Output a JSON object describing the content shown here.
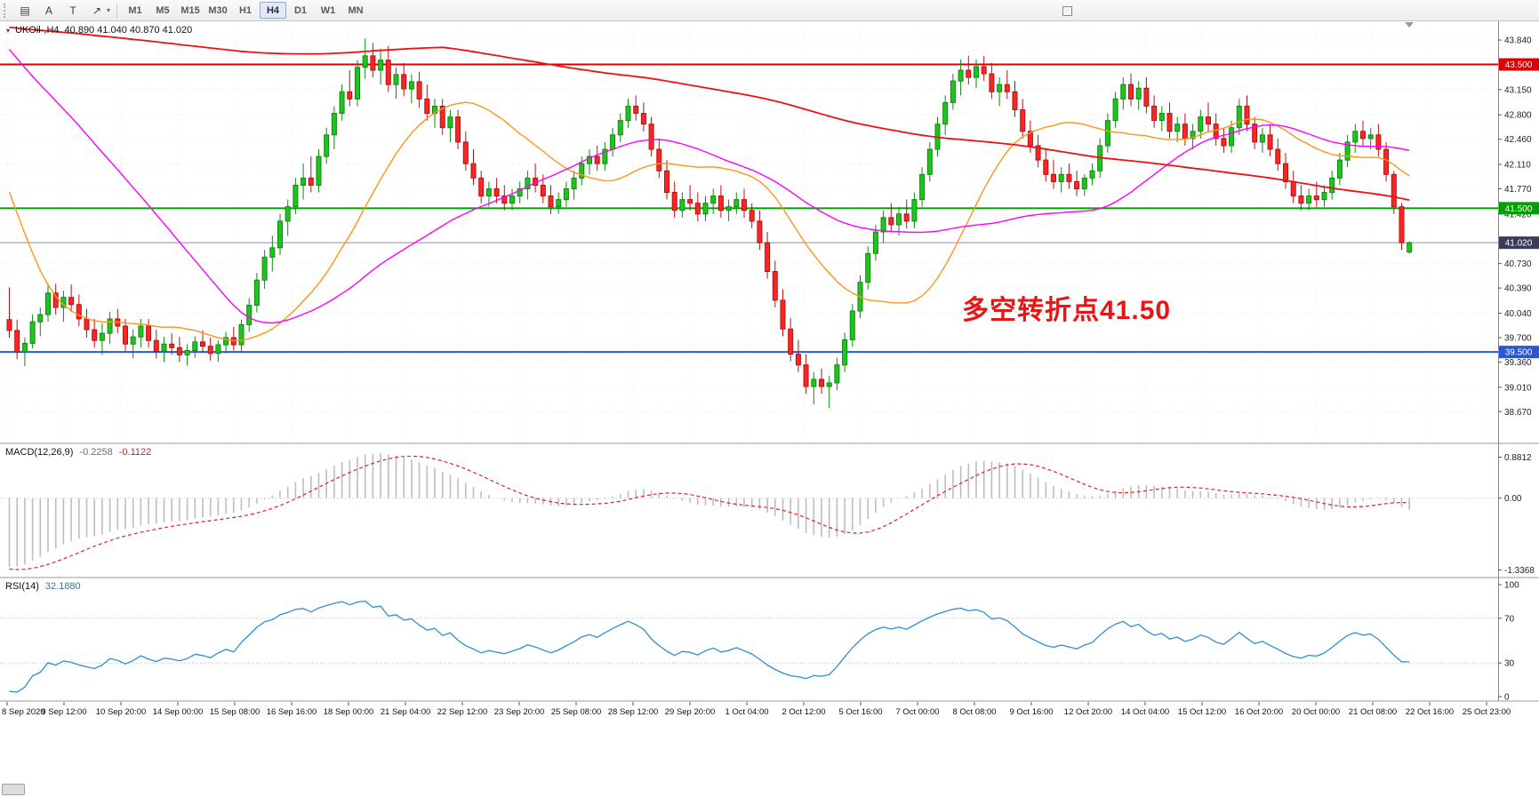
{
  "toolbar": {
    "tools": [
      {
        "name": "chart-window",
        "glyph": "▤"
      },
      {
        "name": "cursor-tool",
        "glyph": "A"
      },
      {
        "name": "text-tool",
        "glyph": "T"
      },
      {
        "name": "draw-tool",
        "glyph": "↗"
      }
    ],
    "dropdown_caret": "▾",
    "timeframes": [
      "M1",
      "M5",
      "M15",
      "M30",
      "H1",
      "H4",
      "D1",
      "W1",
      "MN"
    ],
    "active_timeframe": "H4"
  },
  "chart": {
    "title_caret": "▾",
    "symbol_label": "UKOil-,H4",
    "ohlc_label": "40.890 41.040 40.870 41.020",
    "annotation": {
      "text": "多空转折点41.50",
      "color": "#e81515"
    }
  },
  "chart_data": {
    "type": "candlestick",
    "symbol": "UKOil-",
    "timeframe": "H4",
    "open": "40.890",
    "high": "41.040",
    "low": "40.870",
    "close": "41.020",
    "price_ticks": [
      "43.840",
      "43.150",
      "42.800",
      "42.460",
      "42.110",
      "41.770",
      "41.420",
      "40.730",
      "40.390",
      "40.040",
      "39.700",
      "39.360",
      "39.010",
      "38.670"
    ],
    "levels": [
      {
        "price": 43.5,
        "label": "43.500",
        "color": "#dd0000",
        "width": 2
      },
      {
        "price": 41.5,
        "label": "41.500",
        "color": "#00a000",
        "width": 2
      },
      {
        "price": 41.02,
        "label": "41.020",
        "color": "#8c8cb4",
        "width": 1,
        "tag_color": "#3a3a5c"
      },
      {
        "price": 39.5,
        "label": "39.500",
        "color": "#2b55d4",
        "width": 2
      }
    ],
    "time_labels": [
      "8 Sep 2020",
      "9 Sep 12:00",
      "10 Sep 20:00",
      "14 Sep 00:00",
      "15 Sep 08:00",
      "16 Sep 16:00",
      "18 Sep 00:00",
      "21 Sep 04:00",
      "22 Sep 12:00",
      "23 Sep 20:00",
      "25 Sep 08:00",
      "28 Sep 12:00",
      "29 Sep 20:00",
      "1 Oct 04:00",
      "2 Oct 12:00",
      "5 Oct 16:00",
      "7 Oct 00:00",
      "8 Oct 08:00",
      "9 Oct 16:00",
      "12 Oct 20:00",
      "14 Oct 04:00",
      "15 Oct 12:00",
      "16 Oct 20:00",
      "20 Oct 00:00",
      "21 Oct 08:00",
      "22 Oct 16:00",
      "25 Oct 23:00"
    ],
    "moving_averages": [
      {
        "name": "ma-orange",
        "period": 20,
        "color": "#ff9518"
      },
      {
        "name": "ma-magenta",
        "period": 45,
        "color": "#ff00ff"
      },
      {
        "name": "ma-red",
        "period": 200,
        "color": "#ee1111"
      }
    ],
    "warmup_segments": [
      [
        42.0,
        57
      ],
      [
        45.3,
        127
      ]
    ],
    "warmup_tail": [
      45.0,
      44.2,
      43.4,
      42.6,
      41.8,
      41.2,
      40.7,
      40.3,
      40.1,
      39.95,
      39.9,
      39.85,
      39.9,
      40.0,
      39.95,
      39.9
    ],
    "colors": {
      "bull_fill": "#1fc41f",
      "bull_stroke": "#0d8a0d",
      "bear_fill": "#fa2525",
      "bear_stroke": "#b51212",
      "grid": "#e7e7e7",
      "axis_text": "#222222"
    },
    "candles": [
      [
        39.95,
        40.4,
        39.7,
        39.8
      ],
      [
        39.8,
        39.95,
        39.4,
        39.5
      ],
      [
        39.5,
        39.7,
        39.3,
        39.62
      ],
      [
        39.62,
        40.02,
        39.55,
        39.92
      ],
      [
        39.92,
        40.12,
        39.72,
        40.02
      ],
      [
        40.02,
        40.45,
        39.92,
        40.32
      ],
      [
        40.32,
        40.45,
        40.02,
        40.12
      ],
      [
        40.12,
        40.35,
        39.92,
        40.26
      ],
      [
        40.26,
        40.44,
        40.06,
        40.16
      ],
      [
        40.16,
        40.3,
        39.86,
        39.96
      ],
      [
        39.96,
        40.1,
        39.7,
        39.81
      ],
      [
        39.81,
        39.96,
        39.56,
        39.66
      ],
      [
        39.66,
        39.9,
        39.46,
        39.76
      ],
      [
        39.76,
        40.06,
        39.61,
        39.96
      ],
      [
        39.96,
        40.1,
        39.76,
        39.86
      ],
      [
        39.86,
        39.96,
        39.51,
        39.61
      ],
      [
        39.61,
        39.81,
        39.41,
        39.71
      ],
      [
        39.71,
        39.96,
        39.56,
        39.86
      ],
      [
        39.86,
        39.96,
        39.56,
        39.66
      ],
      [
        39.66,
        39.81,
        39.41,
        39.51
      ],
      [
        39.51,
        39.71,
        39.36,
        39.61
      ],
      [
        39.61,
        39.76,
        39.46,
        39.56
      ],
      [
        39.56,
        39.71,
        39.36,
        39.46
      ],
      [
        39.46,
        39.61,
        39.31,
        39.52
      ],
      [
        39.52,
        39.72,
        39.42,
        39.64
      ],
      [
        39.64,
        39.8,
        39.5,
        39.58
      ],
      [
        39.58,
        39.7,
        39.38,
        39.48
      ],
      [
        39.48,
        39.66,
        39.36,
        39.6
      ],
      [
        39.6,
        39.78,
        39.48,
        39.7
      ],
      [
        39.7,
        39.85,
        39.52,
        39.6
      ],
      [
        39.6,
        39.95,
        39.5,
        39.88
      ],
      [
        39.88,
        40.25,
        39.78,
        40.15
      ],
      [
        40.15,
        40.6,
        40.05,
        40.5
      ],
      [
        40.5,
        40.92,
        40.38,
        40.82
      ],
      [
        40.82,
        41.12,
        40.62,
        40.95
      ],
      [
        40.95,
        41.42,
        40.85,
        41.32
      ],
      [
        41.32,
        41.62,
        41.12,
        41.52
      ],
      [
        41.52,
        41.92,
        41.42,
        41.82
      ],
      [
        41.82,
        42.12,
        41.62,
        41.92
      ],
      [
        41.92,
        42.22,
        41.72,
        41.82
      ],
      [
        41.82,
        42.32,
        41.72,
        42.22
      ],
      [
        42.22,
        42.62,
        42.12,
        42.52
      ],
      [
        42.52,
        42.92,
        42.32,
        42.82
      ],
      [
        42.82,
        43.22,
        42.72,
        43.12
      ],
      [
        43.12,
        43.42,
        42.92,
        43.02
      ],
      [
        43.02,
        43.56,
        42.92,
        43.46
      ],
      [
        43.46,
        43.86,
        43.3,
        43.62
      ],
      [
        43.62,
        43.8,
        43.32,
        43.42
      ],
      [
        43.42,
        43.72,
        43.22,
        43.56
      ],
      [
        43.56,
        43.76,
        43.12,
        43.22
      ],
      [
        43.22,
        43.46,
        43.02,
        43.36
      ],
      [
        43.36,
        43.52,
        43.06,
        43.16
      ],
      [
        43.16,
        43.36,
        42.96,
        43.26
      ],
      [
        43.26,
        43.4,
        42.9,
        43.02
      ],
      [
        43.02,
        43.22,
        42.72,
        42.82
      ],
      [
        42.82,
        43.02,
        42.62,
        42.92
      ],
      [
        42.92,
        43.02,
        42.52,
        42.62
      ],
      [
        42.62,
        42.87,
        42.42,
        42.77
      ],
      [
        42.77,
        42.87,
        42.32,
        42.42
      ],
      [
        42.42,
        42.57,
        42.02,
        42.12
      ],
      [
        42.12,
        42.32,
        41.82,
        41.92
      ],
      [
        41.92,
        42.02,
        41.57,
        41.67
      ],
      [
        41.67,
        41.87,
        41.52,
        41.77
      ],
      [
        41.77,
        41.92,
        41.57,
        41.67
      ],
      [
        41.67,
        41.82,
        41.47,
        41.57
      ],
      [
        41.57,
        41.77,
        41.47,
        41.67
      ],
      [
        41.67,
        41.87,
        41.57,
        41.77
      ],
      [
        41.77,
        42.02,
        41.62,
        41.92
      ],
      [
        41.92,
        42.12,
        41.72,
        41.82
      ],
      [
        41.82,
        41.97,
        41.57,
        41.67
      ],
      [
        41.67,
        41.82,
        41.42,
        41.52
      ],
      [
        41.52,
        41.72,
        41.42,
        41.62
      ],
      [
        41.62,
        41.87,
        41.52,
        41.77
      ],
      [
        41.77,
        42.02,
        41.62,
        41.92
      ],
      [
        41.92,
        42.22,
        41.82,
        42.12
      ],
      [
        42.12,
        42.32,
        41.97,
        42.22
      ],
      [
        42.22,
        42.37,
        42.02,
        42.12
      ],
      [
        42.12,
        42.42,
        42.02,
        42.32
      ],
      [
        42.32,
        42.62,
        42.22,
        42.52
      ],
      [
        42.52,
        42.82,
        42.42,
        42.72
      ],
      [
        42.72,
        43.02,
        42.62,
        42.92
      ],
      [
        42.92,
        43.07,
        42.72,
        42.82
      ],
      [
        42.82,
        42.97,
        42.57,
        42.67
      ],
      [
        42.67,
        42.77,
        42.22,
        42.32
      ],
      [
        42.32,
        42.47,
        41.92,
        42.02
      ],
      [
        42.02,
        42.17,
        41.62,
        41.72
      ],
      [
        41.72,
        41.87,
        41.37,
        41.47
      ],
      [
        41.47,
        41.72,
        41.37,
        41.62
      ],
      [
        41.62,
        41.82,
        41.47,
        41.57
      ],
      [
        41.57,
        41.72,
        41.32,
        41.42
      ],
      [
        41.42,
        41.67,
        41.32,
        41.57
      ],
      [
        41.57,
        41.77,
        41.42,
        41.67
      ],
      [
        41.67,
        41.82,
        41.37,
        41.47
      ],
      [
        41.47,
        41.62,
        41.32,
        41.52
      ],
      [
        41.52,
        41.72,
        41.42,
        41.62
      ],
      [
        41.62,
        41.77,
        41.37,
        41.47
      ],
      [
        41.47,
        41.57,
        41.22,
        41.32
      ],
      [
        41.32,
        41.47,
        40.92,
        41.02
      ],
      [
        41.02,
        41.17,
        40.52,
        40.62
      ],
      [
        40.62,
        40.77,
        40.12,
        40.22
      ],
      [
        40.22,
        40.37,
        39.72,
        39.82
      ],
      [
        39.82,
        39.97,
        39.37,
        39.47
      ],
      [
        39.47,
        39.67,
        39.22,
        39.32
      ],
      [
        39.32,
        39.47,
        38.92,
        39.02
      ],
      [
        39.02,
        39.22,
        38.77,
        39.12
      ],
      [
        39.12,
        39.27,
        38.92,
        39.02
      ],
      [
        39.02,
        39.17,
        38.72,
        39.07
      ],
      [
        39.07,
        39.42,
        38.97,
        39.32
      ],
      [
        39.32,
        39.77,
        39.22,
        39.67
      ],
      [
        39.67,
        40.17,
        39.57,
        40.07
      ],
      [
        40.07,
        40.57,
        39.97,
        40.47
      ],
      [
        40.47,
        40.97,
        40.37,
        40.87
      ],
      [
        40.87,
        41.27,
        40.77,
        41.17
      ],
      [
        41.17,
        41.47,
        41.02,
        41.37
      ],
      [
        41.37,
        41.57,
        41.17,
        41.27
      ],
      [
        41.27,
        41.52,
        41.12,
        41.42
      ],
      [
        41.42,
        41.62,
        41.22,
        41.32
      ],
      [
        41.32,
        41.72,
        41.22,
        41.62
      ],
      [
        41.62,
        42.07,
        41.52,
        41.97
      ],
      [
        41.97,
        42.42,
        41.87,
        42.32
      ],
      [
        42.32,
        42.77,
        42.22,
        42.67
      ],
      [
        42.67,
        43.07,
        42.52,
        42.97
      ],
      [
        42.97,
        43.37,
        42.87,
        43.27
      ],
      [
        43.27,
        43.57,
        43.07,
        43.42
      ],
      [
        43.42,
        43.62,
        43.22,
        43.32
      ],
      [
        43.32,
        43.57,
        43.17,
        43.47
      ],
      [
        43.47,
        43.62,
        43.27,
        43.37
      ],
      [
        43.37,
        43.52,
        43.02,
        43.12
      ],
      [
        43.12,
        43.32,
        42.92,
        43.22
      ],
      [
        43.22,
        43.42,
        43.02,
        43.12
      ],
      [
        43.12,
        43.27,
        42.77,
        42.87
      ],
      [
        42.87,
        43.02,
        42.47,
        42.57
      ],
      [
        42.57,
        42.72,
        42.27,
        42.37
      ],
      [
        42.37,
        42.52,
        42.07,
        42.17
      ],
      [
        42.17,
        42.32,
        41.87,
        41.97
      ],
      [
        41.97,
        42.17,
        41.77,
        41.87
      ],
      [
        41.87,
        42.07,
        41.72,
        41.97
      ],
      [
        41.97,
        42.12,
        41.77,
        41.87
      ],
      [
        41.87,
        42.02,
        41.67,
        41.77
      ],
      [
        41.77,
        41.97,
        41.67,
        41.92
      ],
      [
        41.92,
        42.12,
        41.82,
        42.02
      ],
      [
        42.02,
        42.47,
        41.92,
        42.37
      ],
      [
        42.37,
        42.82,
        42.27,
        42.72
      ],
      [
        42.72,
        43.12,
        42.62,
        43.02
      ],
      [
        43.02,
        43.32,
        42.87,
        43.22
      ],
      [
        43.22,
        43.37,
        42.92,
        43.02
      ],
      [
        43.02,
        43.27,
        42.87,
        43.17
      ],
      [
        43.17,
        43.32,
        42.82,
        42.92
      ],
      [
        42.92,
        43.07,
        42.62,
        42.72
      ],
      [
        42.72,
        42.92,
        42.57,
        42.82
      ],
      [
        42.82,
        42.97,
        42.47,
        42.57
      ],
      [
        42.57,
        42.77,
        42.42,
        42.67
      ],
      [
        42.67,
        42.82,
        42.37,
        42.47
      ],
      [
        42.47,
        42.67,
        42.32,
        42.57
      ],
      [
        42.57,
        42.87,
        42.47,
        42.77
      ],
      [
        42.77,
        42.97,
        42.57,
        42.67
      ],
      [
        42.67,
        42.82,
        42.37,
        42.47
      ],
      [
        42.47,
        42.62,
        42.27,
        42.37
      ],
      [
        42.37,
        42.72,
        42.27,
        42.62
      ],
      [
        42.62,
        43.02,
        42.52,
        42.92
      ],
      [
        42.92,
        43.07,
        42.57,
        42.67
      ],
      [
        42.67,
        42.77,
        42.32,
        42.42
      ],
      [
        42.42,
        42.62,
        42.27,
        42.52
      ],
      [
        42.52,
        42.67,
        42.22,
        42.32
      ],
      [
        42.32,
        42.47,
        42.02,
        42.12
      ],
      [
        42.12,
        42.27,
        41.77,
        41.87
      ],
      [
        41.87,
        42.02,
        41.57,
        41.67
      ],
      [
        41.67,
        41.82,
        41.47,
        41.57
      ],
      [
        41.57,
        41.77,
        41.47,
        41.67
      ],
      [
        41.67,
        41.87,
        41.52,
        41.62
      ],
      [
        41.62,
        41.82,
        41.52,
        41.72
      ],
      [
        41.72,
        42.02,
        41.62,
        41.92
      ],
      [
        41.92,
        42.27,
        41.82,
        42.17
      ],
      [
        42.17,
        42.52,
        42.07,
        42.42
      ],
      [
        42.42,
        42.67,
        42.27,
        42.57
      ],
      [
        42.57,
        42.72,
        42.37,
        42.47
      ],
      [
        42.47,
        42.62,
        42.32,
        42.52
      ],
      [
        42.52,
        42.67,
        42.22,
        42.32
      ],
      [
        42.32,
        42.42,
        41.87,
        41.97
      ],
      [
        41.97,
        42.02,
        41.42,
        41.52
      ],
      [
        41.52,
        41.57,
        40.92,
        41.02
      ],
      [
        40.89,
        41.04,
        40.87,
        41.02
      ]
    ]
  },
  "macd": {
    "name": "MACD(12,26,9)",
    "value_main": "-0.2258",
    "value_signal": "-0.1122",
    "axis_labels": [
      "0.8812",
      "0.00",
      "-1.3368"
    ],
    "fast": 12,
    "slow": 26,
    "signal": 9,
    "hist_color": "#bdbdbd",
    "signal_color": "#dd2222"
  },
  "rsi": {
    "name": "RSI(14)",
    "value": "32.1880",
    "period": 14,
    "axis_labels": [
      "100",
      "70",
      "30",
      "0"
    ],
    "levels": [
      70,
      30
    ],
    "line_color": "#2f8fd0"
  }
}
